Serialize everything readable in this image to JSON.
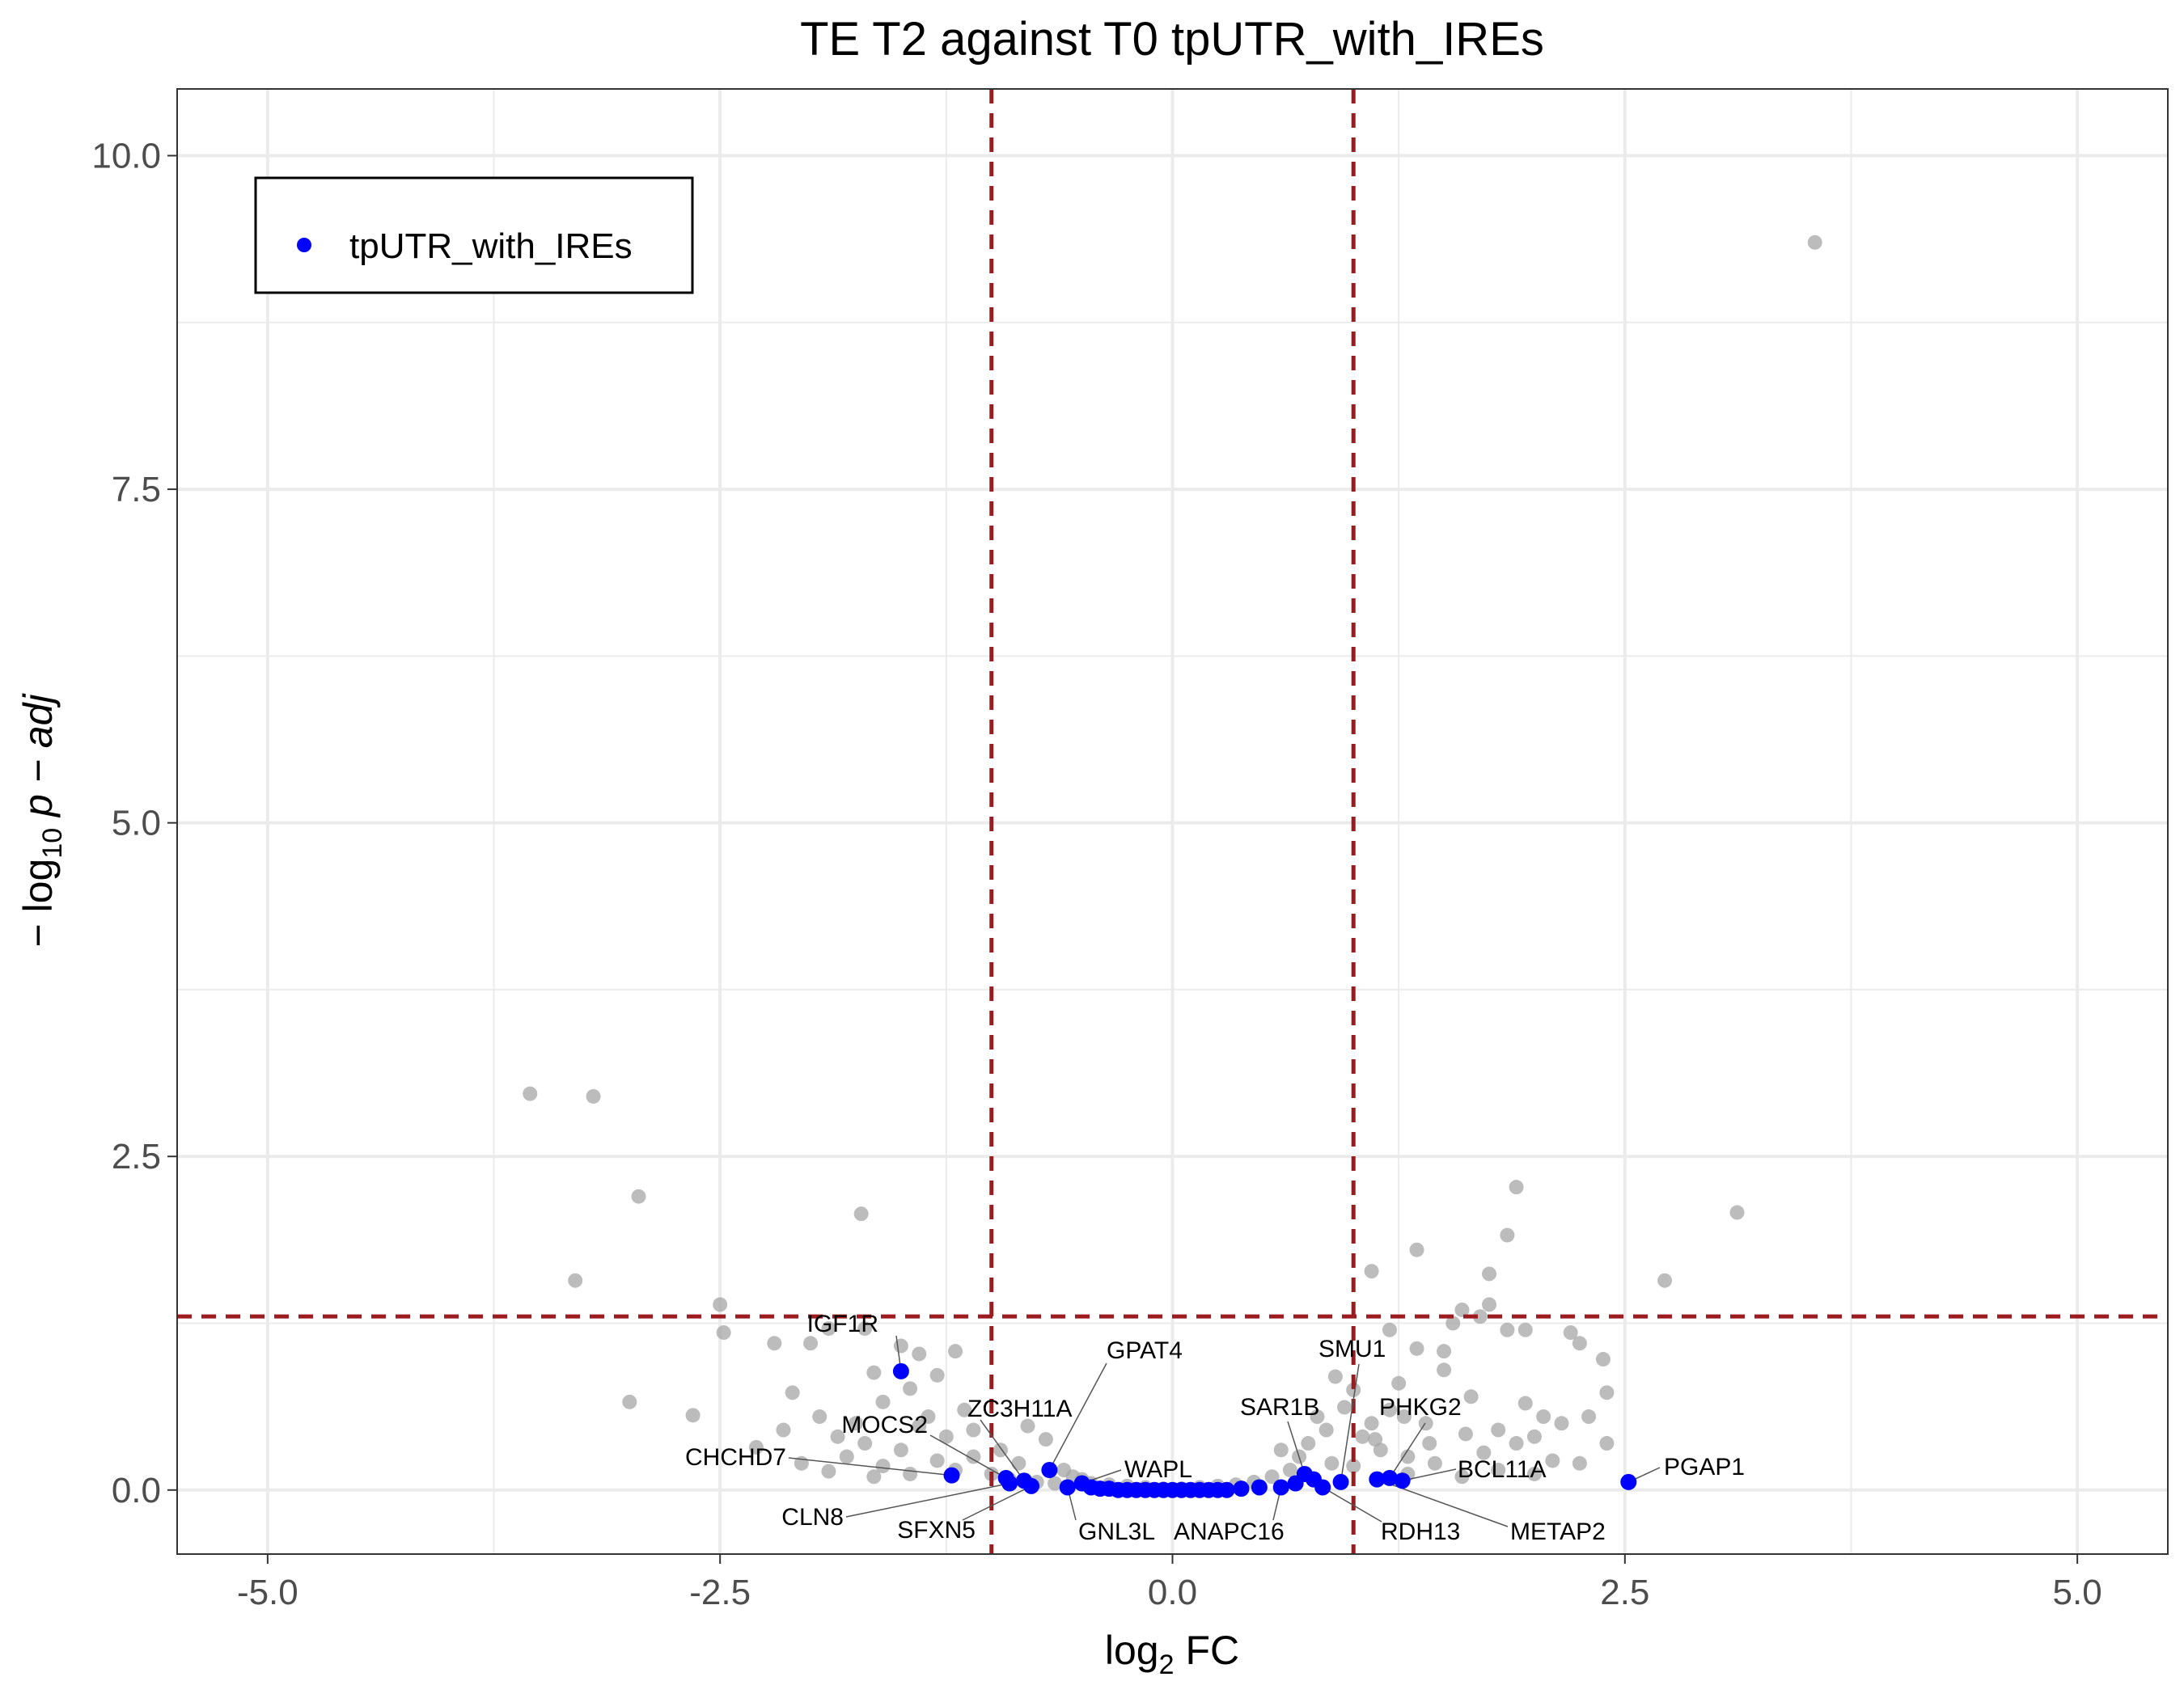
{
  "chart_data": {
    "type": "scatter",
    "title": "TE T2 against T0 tpUTR_with_IREs",
    "xlabel": "log",
    "xlabel_sub": "2",
    "xlabel_suffix": " FC",
    "ylabel_prefix": "− log",
    "ylabel_sub": "10",
    "ylabel_suffix": " p − adj",
    "xlim": [
      -5.5,
      5.5
    ],
    "ylim": [
      -0.48,
      10.5
    ],
    "x_ticks": [
      -5.0,
      -2.5,
      0.0,
      2.5,
      5.0
    ],
    "x_tick_labels": [
      "-5.0",
      "-2.5",
      "0.0",
      "2.5",
      "5.0"
    ],
    "y_ticks": [
      0.0,
      2.5,
      5.0,
      7.5,
      10.0
    ],
    "y_tick_labels": [
      "0.0",
      "2.5",
      "5.0",
      "7.5",
      "10.0"
    ],
    "thresholds": {
      "x": [
        -1,
        1
      ],
      "y": 1.301
    },
    "grid": true,
    "legend": {
      "position": "top-left",
      "label": "tpUTR_with_IREs"
    },
    "colors": {
      "background_points": "#a6a6a6",
      "highlight": "#0000ff",
      "threshold_line": "#9b1b1e",
      "grid": "#ebebeb"
    },
    "background_points": [
      [
        -3.55,
        2.97
      ],
      [
        -3.2,
        2.95
      ],
      [
        -2.95,
        2.2
      ],
      [
        -3.3,
        1.57
      ],
      [
        -3.0,
        0.66
      ],
      [
        -2.65,
        0.56
      ],
      [
        -2.5,
        1.39
      ],
      [
        -2.48,
        1.18
      ],
      [
        -2.2,
        1.1
      ],
      [
        -2.1,
        0.73
      ],
      [
        -2.0,
        1.1
      ],
      [
        -1.9,
        1.21
      ],
      [
        -1.7,
        1.21
      ],
      [
        -1.72,
        2.07
      ],
      [
        -1.65,
        0.88
      ],
      [
        -1.6,
        0.66
      ],
      [
        -1.5,
        1.08
      ],
      [
        -1.45,
        0.76
      ],
      [
        -1.4,
        1.02
      ],
      [
        -1.35,
        0.55
      ],
      [
        -1.3,
        0.86
      ],
      [
        -1.2,
        1.04
      ],
      [
        -1.15,
        0.6
      ],
      [
        -1.1,
        0.45
      ],
      [
        -1.25,
        0.4
      ],
      [
        -1.5,
        0.3
      ],
      [
        -1.8,
        0.25
      ],
      [
        -2.05,
        0.2
      ],
      [
        -1.6,
        0.18
      ],
      [
        -1.3,
        0.22
      ],
      [
        -1.1,
        0.25
      ],
      [
        -0.95,
        0.3
      ],
      [
        -0.8,
        0.48
      ],
      [
        -0.7,
        0.38
      ],
      [
        -0.85,
        0.2
      ],
      [
        -0.6,
        0.15
      ],
      [
        -0.55,
        0.1
      ],
      [
        -0.5,
        0.08
      ],
      [
        -0.45,
        0.05
      ],
      [
        -0.35,
        0.04
      ],
      [
        -0.25,
        0.03
      ],
      [
        -0.15,
        0.02
      ],
      [
        -0.05,
        0.01
      ],
      [
        0.05,
        0.01
      ],
      [
        0.15,
        0.02
      ],
      [
        0.25,
        0.03
      ],
      [
        0.35,
        0.04
      ],
      [
        0.45,
        0.06
      ],
      [
        0.55,
        0.1
      ],
      [
        0.65,
        0.15
      ],
      [
        0.7,
        0.25
      ],
      [
        0.75,
        0.35
      ],
      [
        0.85,
        0.45
      ],
      [
        0.9,
        0.85
      ],
      [
        0.95,
        0.62
      ],
      [
        1.0,
        0.75
      ],
      [
        1.05,
        0.4
      ],
      [
        1.1,
        0.5
      ],
      [
        1.15,
        0.3
      ],
      [
        1.2,
        0.6
      ],
      [
        1.25,
        0.8
      ],
      [
        1.3,
        0.25
      ],
      [
        1.35,
        1.06
      ],
      [
        1.4,
        0.5
      ],
      [
        1.5,
        0.9
      ],
      [
        1.55,
        1.25
      ],
      [
        1.6,
        1.35
      ],
      [
        1.65,
        0.7
      ],
      [
        1.7,
        1.3
      ],
      [
        1.75,
        1.62
      ],
      [
        1.75,
        1.39
      ],
      [
        1.8,
        0.45
      ],
      [
        1.85,
        1.91
      ],
      [
        1.9,
        2.27
      ],
      [
        1.85,
        1.2
      ],
      [
        1.95,
        1.2
      ],
      [
        1.95,
        0.65
      ],
      [
        2.0,
        0.4
      ],
      [
        2.05,
        0.55
      ],
      [
        2.15,
        0.5
      ],
      [
        2.2,
        1.18
      ],
      [
        2.25,
        1.1
      ],
      [
        2.3,
        0.55
      ],
      [
        2.38,
        0.98
      ],
      [
        2.4,
        0.73
      ],
      [
        2.4,
        0.35
      ],
      [
        1.35,
        1.8
      ],
      [
        1.1,
        1.64
      ],
      [
        1.2,
        1.2
      ],
      [
        1.5,
        1.04
      ],
      [
        1.45,
        0.2
      ],
      [
        1.6,
        0.1
      ],
      [
        1.3,
        0.12
      ],
      [
        1.8,
        0.15
      ],
      [
        2.1,
        0.22
      ],
      [
        2.72,
        1.57
      ],
      [
        3.12,
        2.08
      ],
      [
        3.55,
        9.35
      ],
      [
        -2.3,
        0.32
      ],
      [
        -2.15,
        0.45
      ],
      [
        -1.95,
        0.55
      ],
      [
        -1.85,
        0.4
      ],
      [
        -1.75,
        0.5
      ],
      [
        -1.7,
        0.35
      ],
      [
        -1.4,
        0.48
      ],
      [
        -1.0,
        0.12
      ],
      [
        -0.9,
        0.08
      ],
      [
        -0.75,
        0.06
      ],
      [
        -0.65,
        0.05
      ],
      [
        0.6,
        0.3
      ],
      [
        0.8,
        0.55
      ],
      [
        0.88,
        0.2
      ],
      [
        1.0,
        0.18
      ],
      [
        1.12,
        0.38
      ],
      [
        1.28,
        0.55
      ],
      [
        1.42,
        0.35
      ],
      [
        1.62,
        0.42
      ],
      [
        1.72,
        0.28
      ],
      [
        1.9,
        0.35
      ],
      [
        2.0,
        0.12
      ],
      [
        2.25,
        0.2
      ],
      [
        -1.2,
        0.15
      ],
      [
        -1.45,
        0.12
      ],
      [
        -1.65,
        0.1
      ],
      [
        -1.9,
        0.14
      ]
    ],
    "highlight_points": [
      {
        "label": "IGF1R",
        "x": -1.5,
        "y": 0.89
      },
      {
        "label": "CHCHD7",
        "x": -1.22,
        "y": 0.11
      },
      {
        "label": "MOCS2",
        "x": -0.92,
        "y": 0.09
      },
      {
        "label": "CLN8",
        "x": -0.9,
        "y": 0.05
      },
      {
        "label": "ZC3H11A",
        "x": -0.82,
        "y": 0.07
      },
      {
        "label": "SFXN5",
        "x": -0.78,
        "y": 0.03
      },
      {
        "label": "GPAT4",
        "x": -0.68,
        "y": 0.15
      },
      {
        "label": "GNL3L",
        "x": -0.58,
        "y": 0.02
      },
      {
        "label": "WAPL",
        "x": -0.5,
        "y": 0.05
      },
      {
        "label": "ANAPC16",
        "x": 0.6,
        "y": 0.02
      },
      {
        "label": "SAR1B",
        "x": 0.73,
        "y": 0.12
      },
      {
        "label": "RDH13",
        "x": 0.83,
        "y": 0.02
      },
      {
        "label": "SMU1",
        "x": 0.93,
        "y": 0.06
      },
      {
        "label": "METAP2",
        "x": 1.13,
        "y": 0.08
      },
      {
        "label": "PHKG2",
        "x": 1.2,
        "y": 0.09
      },
      {
        "label": "BCL11A",
        "x": 1.27,
        "y": 0.07
      },
      {
        "label": "PGAP1",
        "x": 2.52,
        "y": 0.06
      }
    ],
    "highlight_extra": [
      [
        -0.45,
        0.02
      ],
      [
        -0.4,
        0.01
      ],
      [
        -0.35,
        0.01
      ],
      [
        -0.3,
        0.0
      ],
      [
        -0.25,
        0.0
      ],
      [
        -0.2,
        0.0
      ],
      [
        -0.15,
        0.0
      ],
      [
        -0.1,
        0.0
      ],
      [
        -0.05,
        0.0
      ],
      [
        0.0,
        0.0
      ],
      [
        0.05,
        0.0
      ],
      [
        0.1,
        0.0
      ],
      [
        0.15,
        0.0
      ],
      [
        0.2,
        0.0
      ],
      [
        0.25,
        0.0
      ],
      [
        0.3,
        0.0
      ],
      [
        0.38,
        0.01
      ],
      [
        0.48,
        0.02
      ],
      [
        0.68,
        0.05
      ],
      [
        0.78,
        0.08
      ]
    ]
  }
}
